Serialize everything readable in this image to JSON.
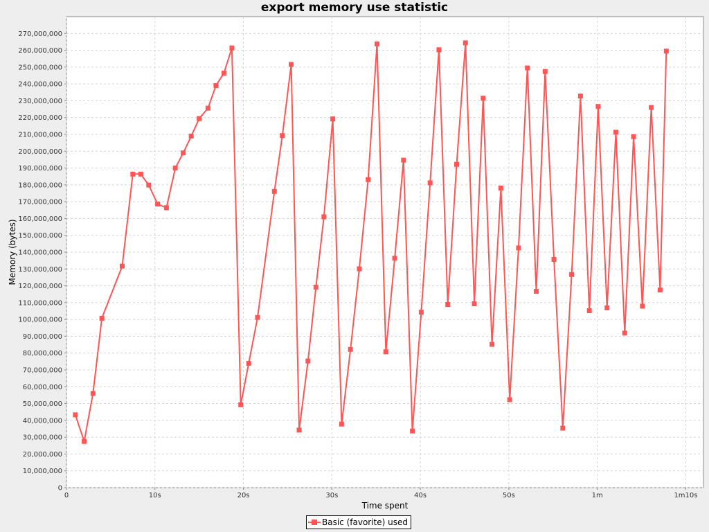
{
  "chart_data": {
    "type": "line",
    "title": "export memory use statistic",
    "xlabel": "Time spent",
    "ylabel": "Memory (bytes)",
    "xlim": [
      0,
      72
    ],
    "ylim": [
      0,
      280000000
    ],
    "x_ticks": [
      {
        "value": 0,
        "label": "0"
      },
      {
        "value": 10,
        "label": "10s"
      },
      {
        "value": 20,
        "label": "20s"
      },
      {
        "value": 30,
        "label": "30s"
      },
      {
        "value": 40,
        "label": "40s"
      },
      {
        "value": 50,
        "label": "50s"
      },
      {
        "value": 60,
        "label": "1m"
      },
      {
        "value": 70,
        "label": "1m10s"
      }
    ],
    "y_ticks": [
      {
        "value": 0,
        "label": "0"
      },
      {
        "value": 10000000,
        "label": "10,000,000"
      },
      {
        "value": 20000000,
        "label": "20,000,000"
      },
      {
        "value": 30000000,
        "label": "30,000,000"
      },
      {
        "value": 40000000,
        "label": "40,000,000"
      },
      {
        "value": 50000000,
        "label": "50,000,000"
      },
      {
        "value": 60000000,
        "label": "60,000,000"
      },
      {
        "value": 70000000,
        "label": "70,000,000"
      },
      {
        "value": 80000000,
        "label": "80,000,000"
      },
      {
        "value": 90000000,
        "label": "90,000,000"
      },
      {
        "value": 100000000,
        "label": "100,000,000"
      },
      {
        "value": 110000000,
        "label": "110,000,000"
      },
      {
        "value": 120000000,
        "label": "120,000,000"
      },
      {
        "value": 130000000,
        "label": "130,000,000"
      },
      {
        "value": 140000000,
        "label": "140,000,000"
      },
      {
        "value": 150000000,
        "label": "150,000,000"
      },
      {
        "value": 160000000,
        "label": "160,000,000"
      },
      {
        "value": 170000000,
        "label": "170,000,000"
      },
      {
        "value": 180000000,
        "label": "180,000,000"
      },
      {
        "value": 190000000,
        "label": "190,000,000"
      },
      {
        "value": 200000000,
        "label": "200,000,000"
      },
      {
        "value": 210000000,
        "label": "210,000,000"
      },
      {
        "value": 220000000,
        "label": "220,000,000"
      },
      {
        "value": 230000000,
        "label": "230,000,000"
      },
      {
        "value": 240000000,
        "label": "240,000,000"
      },
      {
        "value": 250000000,
        "label": "250,000,000"
      },
      {
        "value": 260000000,
        "label": "260,000,000"
      },
      {
        "value": 270000000,
        "label": "270,000,000"
      }
    ],
    "grid": true,
    "legend_position": "bottom-center",
    "series": [
      {
        "name": "Basic (favorite) used",
        "color": "#ff5555",
        "marker": "square",
        "points": [
          [
            1.0,
            43300000
          ],
          [
            2.0,
            27500000
          ],
          [
            3.0,
            56000000
          ],
          [
            4.0,
            100700000
          ],
          [
            6.3,
            131700000
          ],
          [
            7.5,
            186400000
          ],
          [
            8.4,
            186400000
          ],
          [
            9.3,
            179900000
          ],
          [
            10.3,
            168600000
          ],
          [
            11.3,
            166400000
          ],
          [
            12.3,
            190000000
          ],
          [
            13.2,
            199000000
          ],
          [
            14.1,
            209000000
          ],
          [
            15.0,
            219400000
          ],
          [
            16.0,
            225600000
          ],
          [
            16.9,
            239000000
          ],
          [
            17.8,
            246400000
          ],
          [
            18.7,
            261400000
          ],
          [
            19.7,
            49300000
          ],
          [
            20.6,
            73900000
          ],
          [
            21.6,
            101200000
          ],
          [
            23.5,
            176100000
          ],
          [
            24.4,
            209300000
          ],
          [
            25.4,
            251600000
          ],
          [
            26.3,
            34200000
          ],
          [
            27.3,
            75300000
          ],
          [
            28.2,
            119200000
          ],
          [
            29.1,
            161000000
          ],
          [
            30.1,
            219200000
          ],
          [
            31.1,
            37800000
          ],
          [
            32.1,
            82200000
          ],
          [
            33.1,
            130100000
          ],
          [
            34.1,
            183100000
          ],
          [
            35.1,
            263800000
          ],
          [
            36.1,
            80800000
          ],
          [
            37.1,
            136400000
          ],
          [
            38.1,
            194700000
          ],
          [
            39.1,
            33700000
          ],
          [
            40.1,
            104300000
          ],
          [
            41.1,
            181200000
          ],
          [
            42.1,
            260300000
          ],
          [
            43.1,
            108900000
          ],
          [
            44.1,
            192200000
          ],
          [
            45.1,
            264400000
          ],
          [
            46.1,
            109300000
          ],
          [
            47.1,
            231500000
          ],
          [
            48.1,
            85200000
          ],
          [
            49.1,
            178100000
          ],
          [
            50.1,
            52300000
          ],
          [
            51.1,
            142500000
          ],
          [
            52.1,
            249500000
          ],
          [
            53.1,
            116700000
          ],
          [
            54.1,
            247400000
          ],
          [
            55.1,
            135700000
          ],
          [
            56.1,
            35400000
          ],
          [
            57.1,
            126700000
          ],
          [
            58.1,
            232800000
          ],
          [
            59.1,
            105200000
          ],
          [
            60.1,
            226600000
          ],
          [
            61.1,
            106900000
          ],
          [
            62.1,
            211300000
          ],
          [
            63.1,
            91900000
          ],
          [
            64.1,
            208700000
          ],
          [
            65.1,
            107900000
          ],
          [
            66.1,
            226000000
          ],
          [
            67.1,
            117500000
          ],
          [
            67.8,
            259500000
          ]
        ]
      }
    ]
  }
}
